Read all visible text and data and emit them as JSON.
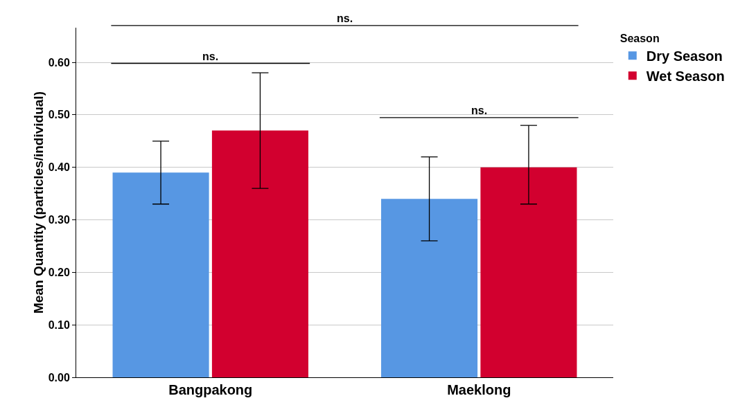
{
  "chart_data": {
    "type": "bar",
    "ylabel": "Mean Quantity (particles/individual)",
    "legend_title": "Season",
    "categories": [
      "Bangpakong",
      "Maeklong"
    ],
    "series": [
      {
        "name": "Dry Season",
        "color": "#5797e3",
        "values": [
          0.39,
          0.34
        ],
        "errors": [
          [
            0.33,
            0.45
          ],
          [
            0.26,
            0.42
          ]
        ]
      },
      {
        "name": "Wet Season",
        "color": "#d2002f",
        "values": [
          0.47,
          0.4
        ],
        "errors": [
          [
            0.36,
            0.58
          ],
          [
            0.33,
            0.48
          ]
        ]
      }
    ],
    "ylim": [
      0,
      0.666
    ],
    "yticks": [
      {
        "value": 0,
        "label": "0.00"
      },
      {
        "value": 0.1,
        "label": "0.10"
      },
      {
        "value": 0.2,
        "label": "0.20"
      },
      {
        "value": 0.3,
        "label": "0.30"
      },
      {
        "value": 0.4,
        "label": "0.40"
      },
      {
        "value": 0.5,
        "label": "0.50"
      },
      {
        "value": 0.6,
        "label": "0.60"
      }
    ],
    "grid": "y",
    "legend": "top right",
    "annotations": [
      "ns.",
      "ns.",
      "ns."
    ]
  }
}
